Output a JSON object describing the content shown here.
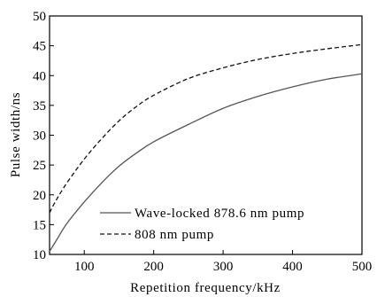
{
  "chart_data": {
    "type": "line",
    "title": "",
    "xlabel": "Repetition frequency/kHz",
    "ylabel": "Pulse width/ns",
    "xlim": [
      50,
      500
    ],
    "ylim": [
      10,
      50
    ],
    "xticks": [
      100,
      200,
      300,
      400,
      500
    ],
    "yticks": [
      10,
      15,
      20,
      25,
      30,
      35,
      40,
      45,
      50
    ],
    "grid": false,
    "legend_position": "bottom-right",
    "series": [
      {
        "name": "Wave-locked 878.6 nm pump",
        "style": "solid",
        "color": "#555555",
        "x": [
          50,
          60,
          75,
          100,
          125,
          150,
          175,
          200,
          250,
          300,
          350,
          400,
          450,
          500
        ],
        "y": [
          10.5,
          12.4,
          15.2,
          18.8,
          22.0,
          24.8,
          27.0,
          28.9,
          31.8,
          34.5,
          36.5,
          38.1,
          39.4,
          40.3
        ]
      },
      {
        "name": "808 nm pump",
        "style": "dashed",
        "color": "#111111",
        "x": [
          50,
          60,
          75,
          100,
          125,
          150,
          175,
          200,
          250,
          300,
          350,
          400,
          450,
          500
        ],
        "y": [
          17.0,
          19.2,
          22.0,
          26.0,
          29.4,
          32.4,
          34.8,
          36.7,
          39.5,
          41.3,
          42.7,
          43.7,
          44.5,
          45.2
        ]
      }
    ]
  }
}
